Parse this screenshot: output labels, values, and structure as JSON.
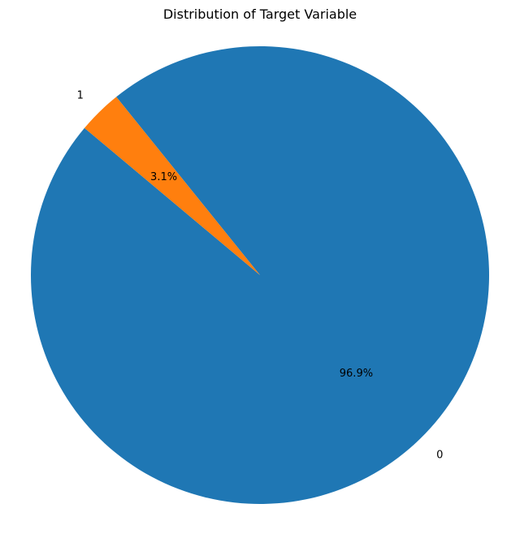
{
  "chart_data": {
    "type": "pie",
    "title": "Distribution of Target Variable",
    "slices": [
      {
        "label": "0",
        "value": 96.9,
        "pct_label": "96.9%",
        "color": "#1f77b4"
      },
      {
        "label": "1",
        "value": 3.1,
        "pct_label": "3.1%",
        "color": "#ff7f0e"
      }
    ],
    "start_angle_deg": 140,
    "direction": "counterclockwise",
    "legend": "none"
  }
}
